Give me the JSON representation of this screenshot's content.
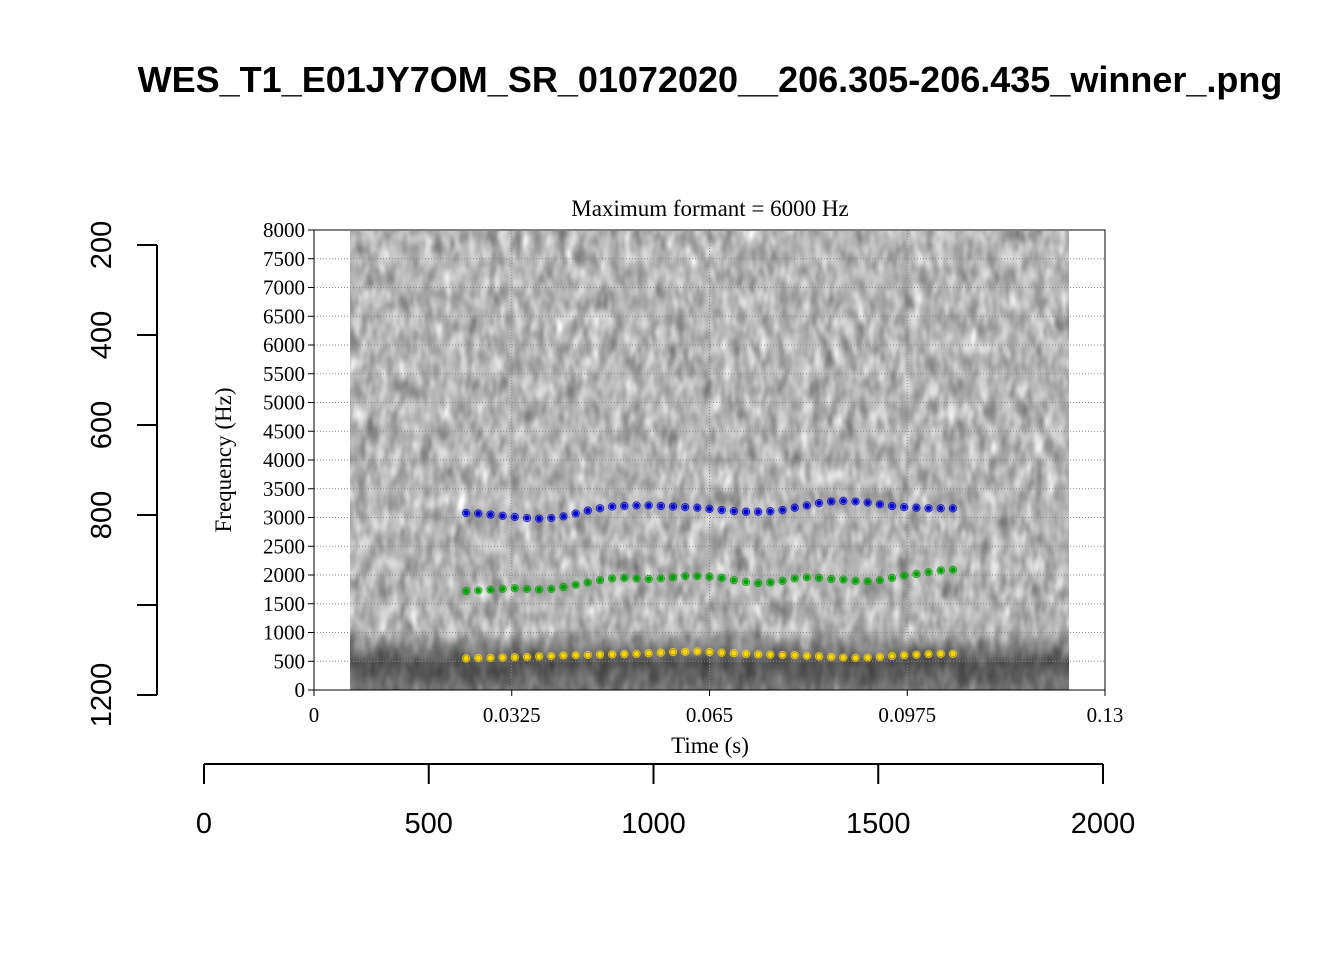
{
  "chart_data": [
    {
      "type": "scatter",
      "title": "WES_T1_E01JY7OM_SR_01072020__206.305-206.435_winner_.png",
      "subtitle": "Maximum formant = 6000 Hz",
      "xlabel": "Time (s)",
      "ylabel": "Frequency (Hz)",
      "xlim": [
        0,
        0.13
      ],
      "ylim": [
        0,
        8000
      ],
      "x_ticks": [
        "0",
        "0.0325",
        "0.065",
        "0.0975",
        "0.13"
      ],
      "y_ticks": [
        "0",
        "500",
        "1000",
        "1500",
        "2000",
        "2500",
        "3000",
        "3500",
        "4000",
        "4500",
        "5000",
        "5500",
        "6000",
        "6500",
        "7000",
        "7500",
        "8000"
      ],
      "grid": true,
      "background": "spectrogram (grayscale), time span approx. 0.006–0.124 s",
      "series": [
        {
          "color": "#ffd700",
          "x": [
            0.025,
            0.027,
            0.029,
            0.031,
            0.033,
            0.035,
            0.037,
            0.039,
            0.041,
            0.043,
            0.045,
            0.047,
            0.049,
            0.051,
            0.053,
            0.055,
            0.057,
            0.059,
            0.061,
            0.063,
            0.065,
            0.067,
            0.069,
            0.071,
            0.073,
            0.075,
            0.077,
            0.079,
            0.081,
            0.083,
            0.085,
            0.087,
            0.089,
            0.091,
            0.093,
            0.095,
            0.097,
            0.099,
            0.101,
            0.103,
            0.105
          ],
          "values": [
            550,
            555,
            560,
            565,
            570,
            575,
            585,
            590,
            600,
            605,
            610,
            615,
            620,
            625,
            630,
            640,
            650,
            660,
            665,
            670,
            660,
            650,
            640,
            630,
            620,
            615,
            610,
            605,
            595,
            585,
            575,
            565,
            560,
            565,
            575,
            590,
            605,
            615,
            625,
            630,
            630
          ]
        },
        {
          "color": "#00a000",
          "x": [
            0.025,
            0.027,
            0.029,
            0.031,
            0.033,
            0.035,
            0.037,
            0.039,
            0.041,
            0.043,
            0.045,
            0.047,
            0.049,
            0.051,
            0.053,
            0.055,
            0.057,
            0.059,
            0.061,
            0.063,
            0.065,
            0.067,
            0.069,
            0.071,
            0.073,
            0.075,
            0.077,
            0.079,
            0.081,
            0.083,
            0.085,
            0.087,
            0.089,
            0.091,
            0.093,
            0.095,
            0.097,
            0.099,
            0.101,
            0.103,
            0.105
          ],
          "values": [
            1720,
            1730,
            1745,
            1760,
            1770,
            1760,
            1750,
            1760,
            1790,
            1830,
            1870,
            1910,
            1940,
            1950,
            1940,
            1930,
            1940,
            1960,
            1980,
            1980,
            1970,
            1950,
            1910,
            1880,
            1860,
            1870,
            1900,
            1940,
            1960,
            1950,
            1930,
            1920,
            1900,
            1890,
            1910,
            1950,
            1990,
            2020,
            2050,
            2080,
            2090
          ]
        },
        {
          "color": "#0000d0",
          "x": [
            0.025,
            0.027,
            0.029,
            0.031,
            0.033,
            0.035,
            0.037,
            0.039,
            0.041,
            0.043,
            0.045,
            0.047,
            0.049,
            0.051,
            0.053,
            0.055,
            0.057,
            0.059,
            0.061,
            0.063,
            0.065,
            0.067,
            0.069,
            0.071,
            0.073,
            0.075,
            0.077,
            0.079,
            0.081,
            0.083,
            0.085,
            0.087,
            0.089,
            0.091,
            0.093,
            0.095,
            0.097,
            0.099,
            0.101,
            0.103,
            0.105
          ],
          "values": [
            3080,
            3070,
            3050,
            3030,
            3010,
            2990,
            2980,
            2990,
            3020,
            3070,
            3120,
            3160,
            3190,
            3200,
            3210,
            3210,
            3200,
            3190,
            3180,
            3170,
            3150,
            3130,
            3110,
            3100,
            3100,
            3110,
            3130,
            3170,
            3210,
            3250,
            3280,
            3290,
            3280,
            3260,
            3230,
            3200,
            3180,
            3170,
            3160,
            3160,
            3160
          ]
        }
      ]
    },
    {
      "type": "axes",
      "x_ticks": [
        "0",
        "500",
        "1000",
        "1500",
        "2000"
      ],
      "y_ticks": [
        "200",
        "400",
        "600",
        "800",
        "1200"
      ],
      "xlim": [
        0,
        2000
      ],
      "ylim": [
        1200,
        200
      ]
    }
  ]
}
